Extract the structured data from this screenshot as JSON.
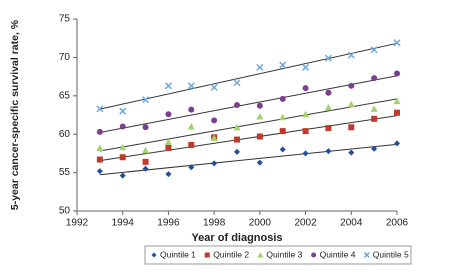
{
  "chart_data": {
    "type": "scatter",
    "xlabel": "Year of diagnosis",
    "ylabel": "5-year cancer-specific survival rate, %",
    "x": [
      1993,
      1994,
      1995,
      1996,
      1997,
      1998,
      1999,
      2000,
      2001,
      2002,
      2003,
      2004,
      2005,
      2006
    ],
    "xlim": [
      1992,
      2006
    ],
    "xticks": [
      1992,
      1994,
      1996,
      1998,
      2000,
      2002,
      2004,
      2006
    ],
    "ylim": [
      50,
      75
    ],
    "yticks": [
      50,
      55,
      60,
      65,
      70,
      75
    ],
    "grid": false,
    "trendline": true,
    "legend": "bottom",
    "series": [
      {
        "name": "Quintile 1",
        "color": "#1f4e9c",
        "marker": "diamond",
        "values": [
          55.2,
          54.6,
          55.5,
          54.8,
          55.7,
          56.2,
          57.7,
          56.3,
          58.0,
          57.5,
          57.8,
          57.6,
          58.1,
          58.8
        ]
      },
      {
        "name": "Quintile 2",
        "color": "#c0392b",
        "marker": "square",
        "values": [
          56.7,
          57.0,
          56.4,
          58.2,
          58.6,
          59.6,
          59.3,
          59.7,
          60.4,
          60.4,
          60.8,
          60.9,
          62.0,
          62.8
        ]
      },
      {
        "name": "Quintile 3",
        "color": "#a5d16a",
        "marker": "triangle",
        "values": [
          58.2,
          58.3,
          57.9,
          59.0,
          61.0,
          59.5,
          60.9,
          62.3,
          62.2,
          62.6,
          63.5,
          63.9,
          63.3,
          64.3
        ]
      },
      {
        "name": "Quintile 4",
        "color": "#7b3f8f",
        "marker": "circle",
        "values": [
          60.3,
          61.0,
          60.9,
          62.6,
          63.2,
          61.8,
          63.8,
          63.7,
          64.6,
          66.0,
          65.4,
          66.3,
          67.3,
          67.9
        ]
      },
      {
        "name": "Quintile 5",
        "color": "#6fa8dc",
        "marker": "cross",
        "values": [
          63.3,
          63.0,
          64.5,
          66.3,
          66.3,
          66.1,
          66.7,
          68.7,
          69.0,
          68.7,
          69.9,
          70.3,
          71.0,
          71.9
        ]
      }
    ]
  }
}
